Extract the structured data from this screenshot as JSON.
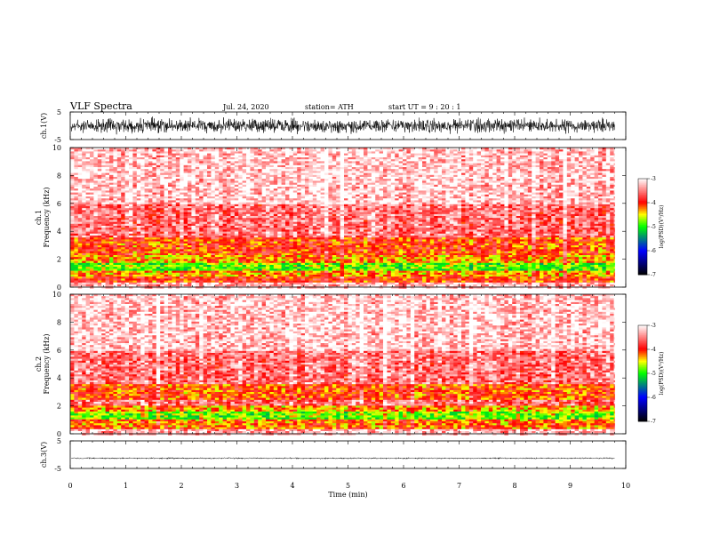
{
  "header": {
    "title": "VLF  Spectra",
    "date": "Jul.  24,  2020",
    "station": "station= ATH",
    "start": "start  UT  =    9  : 20 : 1"
  },
  "chart_data": [
    {
      "type": "line",
      "panel": "ch1-waveform",
      "ylabel": "ch.1(V)",
      "ylim": [
        -5,
        5
      ],
      "yticks": [
        {
          "v": 5,
          "label": "5"
        },
        {
          "v": -5,
          "label": "-5"
        }
      ],
      "xlim": [
        0,
        10
      ],
      "x_end": 9.8,
      "envelope": {
        "mean": 0,
        "amplitude": 3.5
      },
      "color": "#000000"
    },
    {
      "type": "heatmap",
      "panel": "ch1-spectrogram",
      "ylabel_top": "ch.1",
      "ylabel": "Frequency (kHz)",
      "ylim": [
        0,
        10
      ],
      "yticks": [
        {
          "v": 10,
          "label": "10"
        },
        {
          "v": 8,
          "label": "8"
        },
        {
          "v": 6,
          "label": "6"
        },
        {
          "v": 4,
          "label": "4"
        },
        {
          "v": 2,
          "label": "2"
        },
        {
          "v": 0,
          "label": "0"
        }
      ],
      "xlim": [
        0,
        10
      ],
      "x_end": 9.8,
      "bands": [
        {
          "from": 0.0,
          "to": 0.4,
          "level": -3.3
        },
        {
          "from": 0.4,
          "to": 0.8,
          "level": -4.0
        },
        {
          "from": 0.8,
          "to": 1.2,
          "level": -4.3
        },
        {
          "from": 1.2,
          "to": 1.8,
          "level": -4.85
        },
        {
          "from": 1.8,
          "to": 2.3,
          "level": -4.3
        },
        {
          "from": 2.3,
          "to": 3.6,
          "level": -4.05
        },
        {
          "from": 3.6,
          "to": 6.0,
          "level": -3.55
        },
        {
          "from": 6.0,
          "to": 10.0,
          "level": -3.2
        }
      ],
      "colorbar": {
        "label": "log(PSD)(V²/Hz)",
        "range": [
          -7,
          -3
        ],
        "ticks": [
          {
            "v": -3,
            "label": "-3"
          },
          {
            "v": -4,
            "label": "-4"
          },
          {
            "v": -5,
            "label": "-5"
          },
          {
            "v": -6,
            "label": "-6"
          },
          {
            "v": -7,
            "label": "-7"
          }
        ]
      }
    },
    {
      "type": "heatmap",
      "panel": "ch2-spectrogram",
      "ylabel_top": "ch.2",
      "ylabel": "Frequency (kHz)",
      "ylim": [
        0,
        10
      ],
      "yticks": [
        {
          "v": 10,
          "label": "10"
        },
        {
          "v": 8,
          "label": "8"
        },
        {
          "v": 6,
          "label": "6"
        },
        {
          "v": 4,
          "label": "4"
        },
        {
          "v": 2,
          "label": "2"
        },
        {
          "v": 0,
          "label": "0"
        }
      ],
      "xlim": [
        0,
        10
      ],
      "x_end": 9.8,
      "bands": [
        {
          "from": 0.0,
          "to": 0.4,
          "level": -3.3
        },
        {
          "from": 0.4,
          "to": 1.0,
          "level": -4.2
        },
        {
          "from": 1.0,
          "to": 1.6,
          "level": -4.8
        },
        {
          "from": 1.6,
          "to": 2.0,
          "level": -4.3
        },
        {
          "from": 2.0,
          "to": 2.4,
          "level": -3.6
        },
        {
          "from": 2.4,
          "to": 3.6,
          "level": -4.1
        },
        {
          "from": 3.6,
          "to": 6.0,
          "level": -3.55
        },
        {
          "from": 6.0,
          "to": 10.0,
          "level": -3.2
        }
      ],
      "colorbar": {
        "label": "log(PSD)(V²/Hz)",
        "range": [
          -7,
          -3
        ],
        "ticks": [
          {
            "v": -3,
            "label": "-3"
          },
          {
            "v": -4,
            "label": "-4"
          },
          {
            "v": -5,
            "label": "-5"
          },
          {
            "v": -6,
            "label": "-6"
          },
          {
            "v": -7,
            "label": "-7"
          }
        ]
      }
    },
    {
      "type": "line",
      "panel": "ch3-waveform",
      "ylabel": "ch.3(V)",
      "ylim": [
        -5,
        5
      ],
      "yticks": [
        {
          "v": 5,
          "label": "5"
        },
        {
          "v": -5,
          "label": "-5"
        }
      ],
      "xlim": [
        0,
        10
      ],
      "x_end": 9.8,
      "envelope": {
        "mean": -1.3,
        "amplitude": 0.35
      },
      "color": "#000000",
      "xlabel": "Time  (min)",
      "xticks": [
        {
          "v": 0,
          "label": "0"
        },
        {
          "v": 1,
          "label": "1"
        },
        {
          "v": 2,
          "label": "2"
        },
        {
          "v": 3,
          "label": "3"
        },
        {
          "v": 4,
          "label": "4"
        },
        {
          "v": 5,
          "label": "5"
        },
        {
          "v": 6,
          "label": "6"
        },
        {
          "v": 7,
          "label": "7"
        },
        {
          "v": 8,
          "label": "8"
        },
        {
          "v": 9,
          "label": "9"
        },
        {
          "v": 10,
          "label": "10"
        }
      ]
    }
  ]
}
